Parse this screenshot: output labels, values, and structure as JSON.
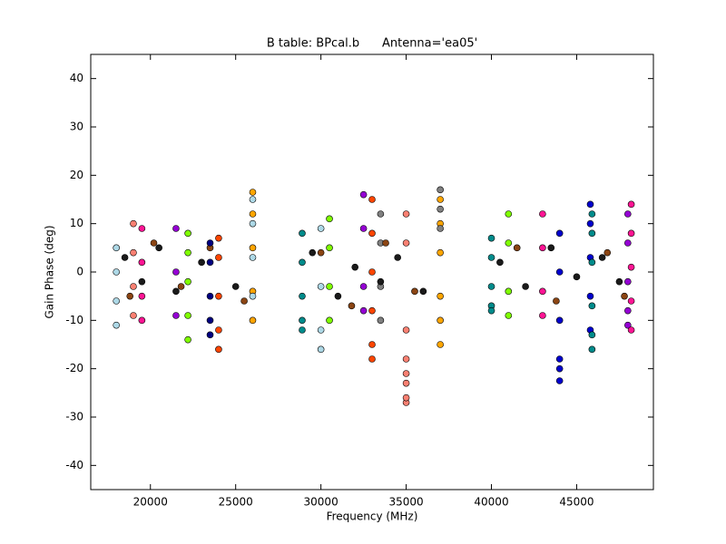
{
  "chart_data": {
    "type": "scatter",
    "title": "B table: BPcal.b      Antenna='ea05'",
    "xlabel": "Frequency (MHz)",
    "ylabel": "Gain Phase (deg)",
    "xlim": [
      16500,
      49500
    ],
    "ylim": [
      -45,
      45
    ],
    "xticks": [
      20000,
      25000,
      30000,
      35000,
      40000,
      45000
    ],
    "yticks": [
      -40,
      -30,
      -20,
      -10,
      0,
      10,
      20,
      30,
      40
    ],
    "series": [
      {
        "color": "#fa8072",
        "x": [
          35000,
          35000,
          35000,
          35000,
          35000,
          35000,
          35000,
          35000,
          19000,
          19000,
          19000,
          19000
        ],
        "values": [
          -27,
          -26,
          -23,
          -21,
          -18,
          -12,
          6,
          12,
          10,
          4,
          -3,
          -9
        ]
      },
      {
        "color": "#ffa500",
        "x": [
          37000,
          37000,
          37000,
          37000,
          37000,
          37000,
          26000,
          26000,
          26000,
          26000,
          26000
        ],
        "values": [
          -15,
          -10,
          -5,
          4,
          10,
          15,
          16.5,
          12,
          5,
          -4,
          -10
        ]
      },
      {
        "color": "#808080",
        "x": [
          37000,
          37000,
          37000,
          33500,
          33500,
          33500,
          33500
        ],
        "values": [
          17,
          13,
          9,
          12,
          6,
          -3,
          -10
        ]
      },
      {
        "color": "#0000cd",
        "x": [
          44000,
          44000,
          44000,
          44000,
          44000,
          44000,
          45800,
          45800,
          45800,
          45800,
          45800
        ],
        "values": [
          -22.5,
          -20,
          -18,
          -10,
          0,
          8,
          14,
          10,
          3,
          -5,
          -12
        ]
      },
      {
        "color": "#ff4500",
        "x": [
          24000,
          24000,
          24000,
          24000,
          24000,
          33000,
          33000,
          33000,
          33000,
          33000,
          33000
        ],
        "values": [
          -16,
          -12,
          -5,
          3,
          7,
          -18,
          -15,
          -8,
          0,
          8,
          15
        ]
      },
      {
        "color": "#7fff00",
        "x": [
          22200,
          22200,
          22200,
          22200,
          22200,
          30500,
          30500,
          30500,
          30500,
          41000,
          41000,
          41000,
          41000
        ],
        "values": [
          -14,
          -9,
          -2,
          4,
          8,
          11,
          5,
          -3,
          -10,
          12,
          6,
          -4,
          -9
        ]
      },
      {
        "color": "#9400d3",
        "x": [
          48000,
          48000,
          48000,
          48000,
          48000,
          32500,
          32500,
          32500,
          32500,
          21500,
          21500,
          21500
        ],
        "values": [
          12,
          6,
          -2,
          -8,
          -11,
          16,
          9,
          -3,
          -8,
          9,
          0,
          -9
        ]
      },
      {
        "color": "#008b8b",
        "x": [
          45900,
          45900,
          45900,
          45900,
          45900,
          45900,
          28900,
          28900,
          28900,
          28900,
          28900,
          40000,
          40000,
          40000,
          40000,
          40000
        ],
        "values": [
          -16,
          -13,
          -7,
          2,
          8,
          12,
          8,
          2,
          -5,
          -10,
          -12,
          7,
          3,
          -3,
          -7,
          -8
        ]
      },
      {
        "color": "#ff1493",
        "x": [
          48200,
          48200,
          48200,
          48200,
          48200,
          43000,
          43000,
          43000,
          43000,
          19500,
          19500,
          19500,
          19500
        ],
        "values": [
          14,
          8,
          1,
          -6,
          -12,
          12,
          5,
          -4,
          -9,
          9,
          2,
          -5,
          -10
        ]
      },
      {
        "color": "#1a1a1a",
        "x": [
          18500,
          19500,
          20500,
          21500,
          23000,
          25000,
          29500,
          31000,
          32000,
          33500,
          34500,
          36000,
          40500,
          42000,
          43500,
          45000,
          46500,
          47500
        ],
        "values": [
          3,
          -2,
          5,
          -4,
          2,
          -3,
          4,
          -5,
          1,
          -2,
          3,
          -4,
          2,
          -3,
          5,
          -1,
          3,
          -2
        ]
      },
      {
        "color": "#8b4513",
        "x": [
          18800,
          20200,
          21800,
          23500,
          25500,
          30000,
          31800,
          33800,
          35500,
          41500,
          43800,
          46800,
          47800
        ],
        "values": [
          -5,
          6,
          -3,
          5,
          -6,
          4,
          -7,
          6,
          -4,
          5,
          -6,
          4,
          -5
        ]
      },
      {
        "color": "#000080",
        "x": [
          23500,
          23500,
          23500,
          23500,
          23500
        ],
        "values": [
          -13,
          -10,
          -5,
          2,
          6
        ]
      },
      {
        "color": "#add8e6",
        "x": [
          26000,
          26000,
          26000,
          26000,
          18000,
          18000,
          18000,
          18000,
          30000,
          30000,
          30000,
          30000
        ],
        "values": [
          15,
          10,
          3,
          -5,
          5,
          0,
          -6,
          -11,
          9,
          -3,
          -12,
          -16
        ]
      }
    ]
  }
}
